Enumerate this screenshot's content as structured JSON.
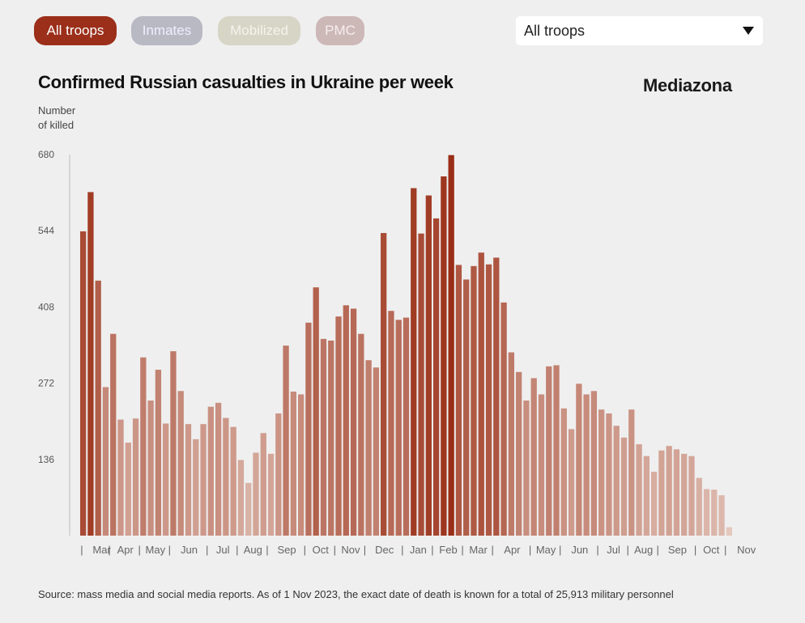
{
  "filters": {
    "buttons": [
      {
        "label": "All troops",
        "color": "#9b2f1a",
        "active": true
      },
      {
        "label": "Inmates",
        "color": "#b9b9c4",
        "active": false
      },
      {
        "label": "Mobilized",
        "color": "#d7d5c6",
        "active": false
      },
      {
        "label": "PMC",
        "color": "#cdb8b8",
        "active": false
      }
    ],
    "select": {
      "value": "All troops"
    }
  },
  "header": {
    "title": "Confirmed Russian casualties in Ukraine per week",
    "brand": "Mediazona",
    "ylabel_line1": "Number",
    "ylabel_line2": "of killed"
  },
  "footer": {
    "source": "Source: mass media and social media reports. As of 1 Nov 2023, the exact date of death is known for a total of 25,913 military personnel"
  },
  "chart_data": {
    "type": "bar",
    "title": "Confirmed Russian casualties in Ukraine per week",
    "xlabel": "",
    "ylabel": "Number of killed",
    "ylim": [
      0,
      680
    ],
    "yticks": [
      136,
      272,
      408,
      544,
      680
    ],
    "grid": false,
    "color_low": "#e6cdc3",
    "color_high": "#9a2e16",
    "x_month_labels": [
      "Mar",
      "Apr",
      "May",
      "Jun",
      "Jul",
      "Aug",
      "Sep",
      "Oct",
      "Nov",
      "Dec",
      "Jan",
      "Feb",
      "Mar",
      "Apr",
      "May",
      "Jun",
      "Jul",
      "Aug",
      "Sep",
      "Oct",
      "Nov"
    ],
    "x_month_start_week": [
      1,
      5,
      9,
      13,
      18,
      22,
      26,
      31,
      35,
      39,
      44,
      48,
      52,
      56,
      61,
      65,
      70,
      74,
      78,
      83,
      87
    ],
    "values": [
      543,
      613,
      455,
      265,
      360,
      207,
      166,
      209,
      318,
      241,
      296,
      200,
      329,
      258,
      199,
      172,
      199,
      230,
      237,
      210,
      194,
      135,
      94,
      148,
      183,
      146,
      218,
      339,
      257,
      252,
      380,
      443,
      351,
      348,
      391,
      411,
      405,
      360,
      313,
      300,
      540,
      401,
      385,
      389,
      620,
      539,
      607,
      566,
      641,
      679,
      483,
      457,
      481,
      505,
      484,
      496,
      416,
      327,
      292,
      241,
      281,
      252,
      302,
      304,
      227,
      190,
      271,
      252,
      258,
      225,
      218,
      196,
      175,
      225,
      163,
      142,
      114,
      152,
      160,
      154,
      146,
      142,
      103,
      83,
      82,
      72,
      15
    ]
  }
}
